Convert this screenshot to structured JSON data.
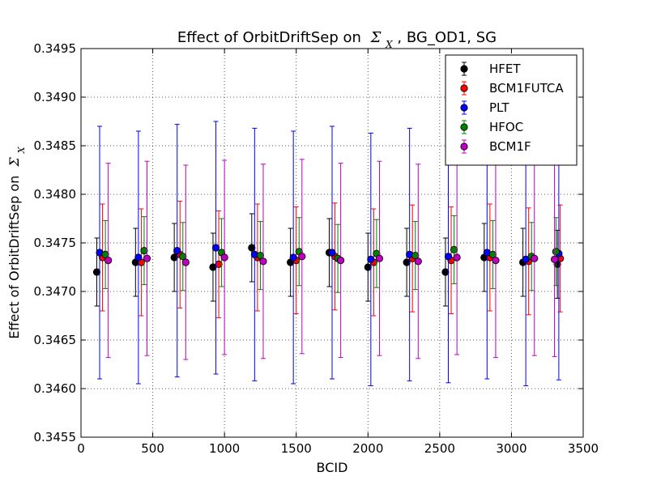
{
  "chart_data": {
    "type": "scatter",
    "title_prefix": "Effect of OrbitDriftSep on",
    "title_suffix": ", BG_OD1, SG",
    "xlabel": "BCID",
    "ylabel_prefix": "Effect of OrbitDriftSep on",
    "symbol": "Σ",
    "symbol_subscript": "X",
    "xlim": [
      0,
      3500
    ],
    "ylim": [
      0.3455,
      0.3495
    ],
    "x_ticks": [
      0,
      500,
      1000,
      1500,
      2000,
      2500,
      3000,
      3500
    ],
    "x_tick_labels": [
      "0",
      "500",
      "1000",
      "1500",
      "2000",
      "2500",
      "3000",
      "3500"
    ],
    "y_ticks": [
      0.3455,
      0.346,
      0.3465,
      0.347,
      0.3475,
      0.348,
      0.3485,
      0.349,
      0.3495
    ],
    "y_tick_labels": [
      "0.3455",
      "0.3460",
      "0.3465",
      "0.3470",
      "0.3475",
      "0.3480",
      "0.3485",
      "0.3490",
      "0.3495"
    ],
    "grid": true,
    "legend_position": "top-right",
    "series": [
      {
        "name": "HFET",
        "color": "#000000",
        "x": [
          110,
          380,
          650,
          920,
          1190,
          1460,
          1730,
          2000,
          2270,
          2540,
          2810,
          3080,
          3320
        ],
        "y": [
          0.3472,
          0.3473,
          0.34735,
          0.34725,
          0.34745,
          0.3473,
          0.3474,
          0.34725,
          0.3473,
          0.3472,
          0.34735,
          0.3473,
          0.34728
        ],
        "err": [
          0.00035,
          0.00035,
          0.00035,
          0.00035,
          0.00035,
          0.00035,
          0.00035,
          0.00035,
          0.00035,
          0.00035,
          0.00035,
          0.00035,
          0.00035
        ]
      },
      {
        "name": "BCM1FUTCA",
        "color": "#ff0000",
        "x": [
          150,
          420,
          690,
          960,
          1230,
          1500,
          1770,
          2040,
          2310,
          2580,
          2850,
          3120,
          3340
        ],
        "y": [
          0.34735,
          0.3473,
          0.34738,
          0.34728,
          0.34735,
          0.34732,
          0.34736,
          0.3473,
          0.34734,
          0.34732,
          0.34735,
          0.34731,
          0.34734
        ],
        "err": [
          0.00055,
          0.00055,
          0.00055,
          0.00055,
          0.00055,
          0.00055,
          0.00055,
          0.00055,
          0.00055,
          0.00055,
          0.00055,
          0.00055,
          0.00055
        ]
      },
      {
        "name": "PLT",
        "color": "#0000ff",
        "x": [
          130,
          400,
          670,
          940,
          1210,
          1480,
          1750,
          2020,
          2290,
          2560,
          2830,
          3100,
          3330
        ],
        "y": [
          0.3474,
          0.34735,
          0.34742,
          0.34745,
          0.34738,
          0.34735,
          0.3474,
          0.34733,
          0.34738,
          0.34736,
          0.3474,
          0.34733,
          0.34739
        ],
        "err": [
          0.0013,
          0.0013,
          0.0013,
          0.0013,
          0.0013,
          0.0013,
          0.0013,
          0.0013,
          0.0013,
          0.0013,
          0.0013,
          0.0013,
          0.0013
        ]
      },
      {
        "name": "HFOC",
        "color": "#008000",
        "x": [
          170,
          440,
          710,
          980,
          1250,
          1520,
          1790,
          2060,
          2330,
          2600,
          2870,
          3140,
          3310
        ],
        "y": [
          0.34738,
          0.34742,
          0.34736,
          0.3474,
          0.34737,
          0.34741,
          0.34734,
          0.34739,
          0.34737,
          0.34743,
          0.34738,
          0.34736,
          0.34741
        ],
        "err": [
          0.00035,
          0.00035,
          0.00035,
          0.00035,
          0.00035,
          0.00035,
          0.00035,
          0.00035,
          0.00035,
          0.00035,
          0.00035,
          0.00035,
          0.00035
        ]
      },
      {
        "name": "BCM1F",
        "color": "#bf00bf",
        "x": [
          190,
          460,
          730,
          1000,
          1270,
          1540,
          1810,
          2080,
          2350,
          2620,
          2890,
          3160,
          3300
        ],
        "y": [
          0.34732,
          0.34734,
          0.3473,
          0.34735,
          0.34731,
          0.34736,
          0.34732,
          0.34734,
          0.34731,
          0.34735,
          0.34732,
          0.34734,
          0.34733
        ],
        "err": [
          0.001,
          0.001,
          0.001,
          0.001,
          0.001,
          0.001,
          0.001,
          0.001,
          0.001,
          0.001,
          0.001,
          0.001,
          0.001
        ]
      }
    ]
  }
}
